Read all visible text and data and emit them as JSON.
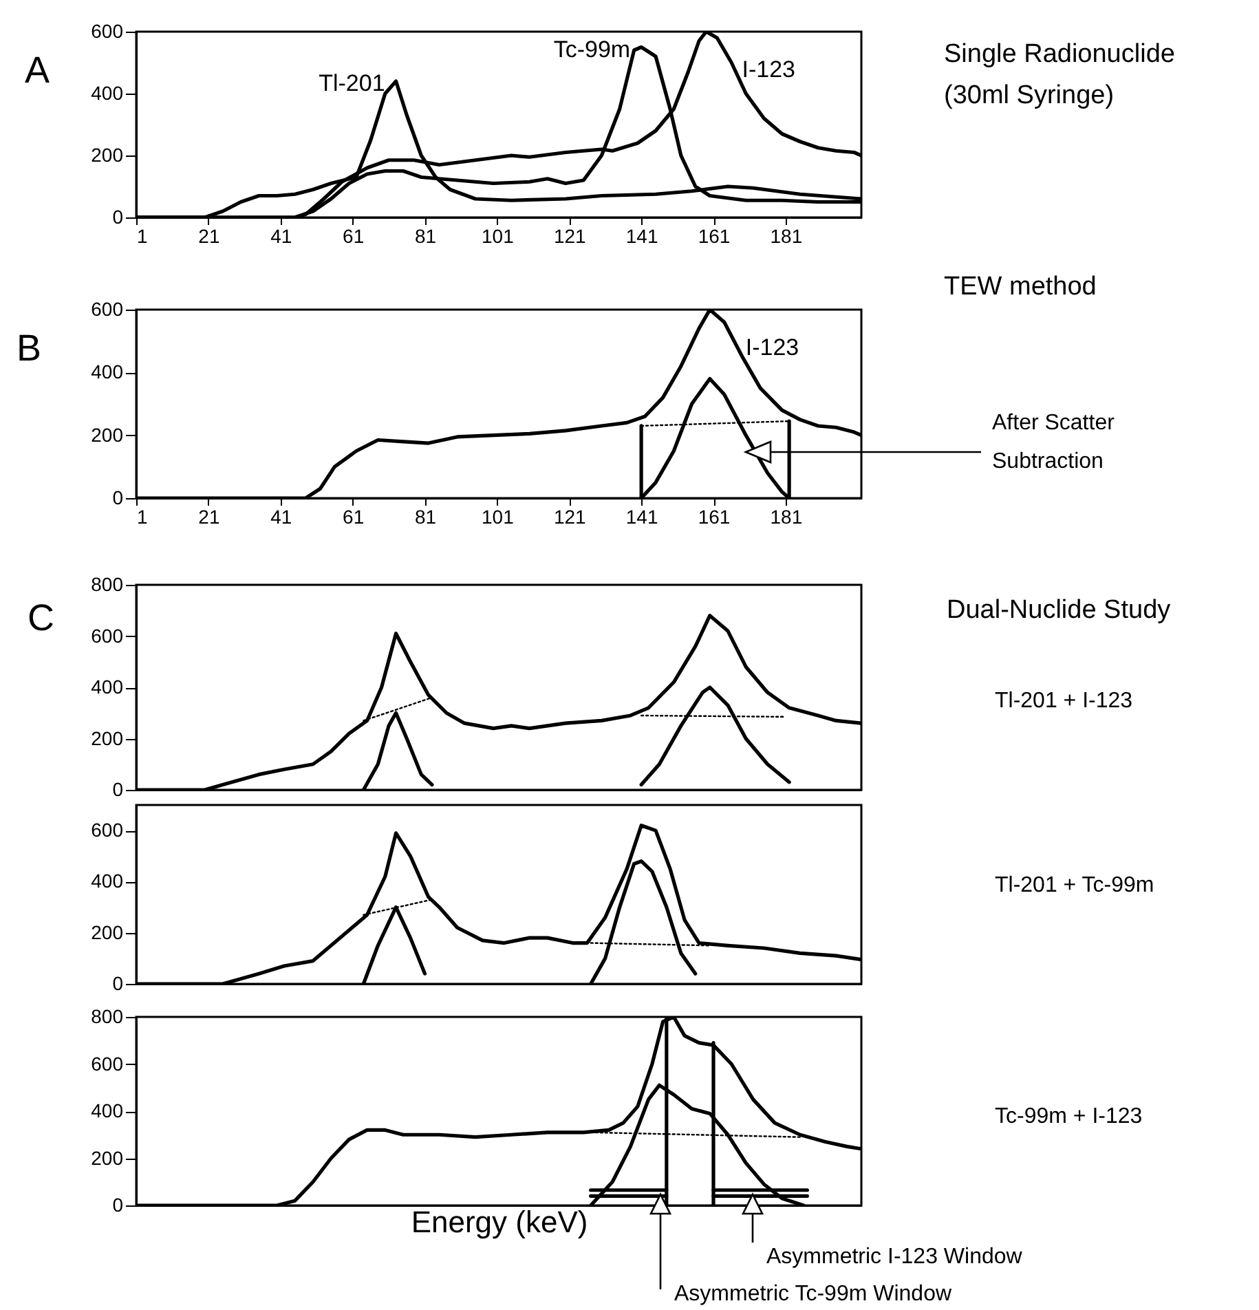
{
  "chart_data": [
    {
      "type": "line",
      "annotations": [
        "A",
        "Single Radionuclide (30ml Syringe)"
      ],
      "xlim": [
        1,
        202
      ],
      "ylim": [
        0,
        600
      ],
      "xticks": [
        1,
        21,
        41,
        61,
        81,
        101,
        121,
        141,
        161,
        181
      ],
      "yticks": [
        0,
        200,
        400,
        600
      ],
      "series": [
        {
          "name": "Tl-201",
          "color": "#000000",
          "x": [
            1,
            20,
            25,
            30,
            35,
            40,
            45,
            50,
            55,
            62,
            66,
            70,
            73,
            76,
            80,
            84,
            88,
            95,
            105,
            120,
            130,
            145,
            155,
            165,
            172,
            185,
            202
          ],
          "values": [
            0,
            0,
            20,
            50,
            70,
            70,
            75,
            90,
            110,
            130,
            250,
            400,
            440,
            330,
            200,
            130,
            90,
            60,
            55,
            60,
            70,
            75,
            85,
            100,
            95,
            75,
            60
          ]
        },
        {
          "name": "Tc-99m",
          "color": "#000000",
          "x": [
            1,
            45,
            50,
            55,
            60,
            65,
            70,
            75,
            80,
            90,
            100,
            110,
            115,
            120,
            125,
            130,
            135,
            139,
            141,
            145,
            149,
            152,
            156,
            160,
            170,
            180,
            190,
            202
          ],
          "values": [
            0,
            0,
            20,
            60,
            110,
            140,
            150,
            150,
            130,
            120,
            110,
            115,
            125,
            110,
            120,
            200,
            350,
            540,
            550,
            520,
            350,
            200,
            100,
            70,
            55,
            55,
            50,
            50
          ]
        },
        {
          "name": "I-123",
          "color": "#000000",
          "x": [
            1,
            45,
            48,
            53,
            58,
            65,
            71,
            78,
            85,
            95,
            105,
            110,
            120,
            130,
            133,
            140,
            145,
            150,
            154,
            157,
            159,
            162,
            166,
            170,
            175,
            180,
            185,
            190,
            195,
            200,
            202
          ],
          "values": [
            0,
            0,
            10,
            60,
            115,
            160,
            185,
            185,
            170,
            185,
            200,
            195,
            210,
            220,
            215,
            240,
            280,
            350,
            470,
            570,
            600,
            580,
            500,
            400,
            320,
            270,
            245,
            225,
            215,
            210,
            200
          ]
        }
      ]
    },
    {
      "type": "line",
      "annotations": [
        "B",
        "TEW method",
        "After Scatter Subtraction"
      ],
      "xlim": [
        1,
        202
      ],
      "ylim": [
        0,
        600
      ],
      "xticks": [
        1,
        21,
        41,
        61,
        81,
        101,
        121,
        141,
        161,
        181
      ],
      "yticks": [
        0,
        200,
        400,
        600
      ],
      "series": [
        {
          "name": "I-123",
          "color": "#000000",
          "x": [
            1,
            48,
            52,
            56,
            62,
            68,
            75,
            82,
            90,
            100,
            110,
            120,
            130,
            137,
            142,
            147,
            152,
            157,
            160,
            164,
            169,
            174,
            180,
            185,
            190,
            195,
            200,
            202
          ],
          "values": [
            0,
            0,
            30,
            100,
            150,
            185,
            180,
            175,
            195,
            200,
            205,
            215,
            230,
            240,
            260,
            320,
            420,
            540,
            600,
            560,
            450,
            350,
            280,
            250,
            230,
            225,
            210,
            200
          ]
        },
        {
          "color": "#000000",
          "x": [
            141,
            145,
            150,
            155,
            160,
            164,
            170,
            176,
            180,
            182
          ],
          "values": [
            0,
            50,
            150,
            300,
            380,
            330,
            200,
            80,
            20,
            0
          ]
        },
        {
          "color": "#000000",
          "line_style": "dotted",
          "x": [
            141,
            182
          ],
          "values": [
            230,
            245
          ]
        },
        {
          "color": "#000000",
          "x": [
            141,
            141
          ],
          "values": [
            0,
            230
          ]
        },
        {
          "color": "#000000",
          "x": [
            182,
            182
          ],
          "values": [
            0,
            245
          ]
        }
      ]
    },
    {
      "type": "line",
      "annotations": [
        "C",
        "Dual-Nuclide Study",
        "Tl-201  +  I-123"
      ],
      "tick_labels": "y",
      "xlim": [
        1,
        202
      ],
      "ylim": [
        0,
        800
      ],
      "yticks": [
        0,
        200,
        400,
        600,
        800
      ],
      "series": [
        {
          "color": "#000000",
          "x": [
            1,
            20,
            25,
            35,
            42,
            50,
            55,
            60,
            65,
            69,
            73,
            77,
            82,
            87,
            92,
            100,
            105,
            110,
            120,
            130,
            138,
            143,
            150,
            156,
            160,
            165,
            170,
            176,
            182,
            190,
            195,
            202
          ],
          "values": [
            0,
            0,
            20,
            60,
            80,
            100,
            150,
            220,
            270,
            400,
            610,
            500,
            370,
            300,
            260,
            240,
            250,
            240,
            260,
            270,
            290,
            320,
            420,
            560,
            680,
            620,
            480,
            380,
            320,
            290,
            270,
            260
          ]
        },
        {
          "color": "#000000",
          "x": [
            64,
            68,
            71,
            73,
            76,
            80,
            83
          ],
          "values": [
            0,
            100,
            250,
            300,
            200,
            60,
            20
          ]
        },
        {
          "color": "#000000",
          "x": [
            141,
            146,
            152,
            158,
            160,
            165,
            170,
            176,
            182
          ],
          "values": [
            20,
            100,
            250,
            380,
            400,
            330,
            200,
            100,
            30
          ]
        },
        {
          "color": "#000000",
          "line_style": "dotted",
          "x": [
            64,
            83
          ],
          "values": [
            270,
            360
          ]
        },
        {
          "color": "#000000",
          "line_style": "dotted",
          "x": [
            141,
            181
          ],
          "values": [
            290,
            285
          ]
        }
      ]
    },
    {
      "type": "line",
      "annotations": [
        "Tl-201  +  Tc-99m"
      ],
      "tick_labels": "y",
      "xlim": [
        1,
        202
      ],
      "ylim": [
        0,
        700
      ],
      "yticks": [
        0,
        200,
        400,
        600
      ],
      "series": [
        {
          "color": "#000000",
          "x": [
            1,
            25,
            35,
            42,
            50,
            55,
            60,
            65,
            70,
            73,
            77,
            82,
            85,
            90,
            97,
            103,
            110,
            115,
            122,
            126,
            131,
            137,
            141,
            145,
            149,
            153,
            157,
            165,
            175,
            185,
            195,
            202
          ],
          "values": [
            0,
            0,
            40,
            70,
            90,
            150,
            210,
            270,
            420,
            590,
            500,
            340,
            300,
            220,
            170,
            160,
            180,
            180,
            160,
            160,
            260,
            450,
            620,
            600,
            450,
            250,
            160,
            150,
            140,
            120,
            110,
            95
          ]
        },
        {
          "color": "#000000",
          "x": [
            64,
            68,
            73,
            77,
            81
          ],
          "values": [
            0,
            150,
            300,
            180,
            40
          ]
        },
        {
          "color": "#000000",
          "x": [
            127,
            131,
            135,
            139,
            141,
            144,
            148,
            152,
            156
          ],
          "values": [
            0,
            100,
            300,
            470,
            480,
            440,
            300,
            120,
            40
          ]
        },
        {
          "color": "#000000",
          "line_style": "dotted",
          "x": [
            64,
            83
          ],
          "values": [
            270,
            330
          ]
        },
        {
          "color": "#000000",
          "line_style": "dotted",
          "x": [
            127,
            160
          ],
          "values": [
            160,
            150
          ]
        }
      ]
    },
    {
      "type": "line",
      "xlabel": "Energy (keV)",
      "annotations": [
        "Tc-99m  +  I-123",
        "Asymmetric I-123 Window",
        "Asymmetric Tc-99m Window"
      ],
      "tick_labels": "y",
      "xlim": [
        1,
        202
      ],
      "ylim": [
        0,
        800
      ],
      "yticks": [
        0,
        200,
        400,
        600,
        800
      ],
      "series": [
        {
          "color": "#000000",
          "x": [
            1,
            40,
            45,
            50,
            55,
            60,
            65,
            70,
            75,
            85,
            95,
            105,
            115,
            125,
            132,
            136,
            140,
            144,
            147,
            150,
            153,
            157,
            161,
            166,
            172,
            178,
            185,
            192,
            198,
            202
          ],
          "values": [
            0,
            0,
            20,
            100,
            200,
            280,
            320,
            320,
            300,
            300,
            290,
            300,
            310,
            310,
            320,
            350,
            420,
            600,
            780,
            800,
            720,
            690,
            680,
            600,
            450,
            350,
            300,
            270,
            250,
            240
          ]
        },
        {
          "color": "#000000",
          "x": [
            127,
            133,
            138,
            143,
            146,
            150,
            155,
            160,
            165,
            170,
            175,
            180,
            186
          ],
          "values": [
            0,
            100,
            250,
            450,
            510,
            470,
            410,
            390,
            300,
            180,
            90,
            30,
            0
          ]
        },
        {
          "color": "#000000",
          "line_style": "dotted",
          "x": [
            127,
            185
          ],
          "values": [
            310,
            290
          ]
        },
        {
          "color": "#000000",
          "x": [
            148,
            148
          ],
          "values": [
            0,
            800
          ]
        },
        {
          "color": "#000000",
          "x": [
            161,
            161
          ],
          "values": [
            0,
            690
          ]
        },
        {
          "color": "#000000",
          "x": [
            127,
            148
          ],
          "values": [
            65,
            65
          ]
        },
        {
          "color": "#000000",
          "x": [
            127,
            148
          ],
          "values": [
            40,
            40
          ]
        },
        {
          "color": "#000000",
          "x": [
            161,
            187
          ],
          "values": [
            65,
            65
          ]
        },
        {
          "color": "#000000",
          "x": [
            161,
            187
          ],
          "values": [
            40,
            40
          ]
        }
      ]
    }
  ]
}
